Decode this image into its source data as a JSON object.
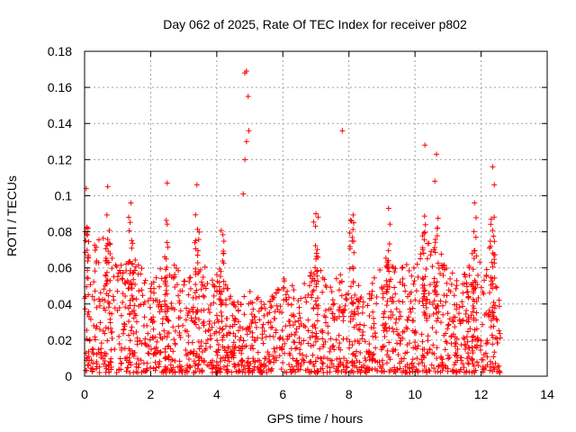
{
  "chart_data": {
    "type": "scatter",
    "title": "Day 062 of 2025, Rate Of TEC Index for receiver p802",
    "xlabel": "GPS time / hours",
    "ylabel": "ROTI / TECUs",
    "xlim": [
      0,
      14
    ],
    "ylim": [
      0,
      0.18
    ],
    "xticks": [
      0,
      2,
      4,
      6,
      8,
      10,
      12,
      14
    ],
    "xtick_labels": [
      "0",
      "2",
      "4",
      "6",
      "8",
      "10",
      "12",
      "14"
    ],
    "yticks": [
      0,
      0.02,
      0.04,
      0.06,
      0.08,
      0.1,
      0.12,
      0.14,
      0.16,
      0.18
    ],
    "ytick_labels": [
      "0",
      "0.02",
      "0.04",
      "0.06",
      "0.08",
      "0.1",
      "0.12",
      "0.14",
      "0.16",
      "0.18"
    ],
    "grid": true,
    "marker": "+",
    "series": [
      {
        "name": "ROTI",
        "color": "#ff0000",
        "x_range": [
          0,
          12.6
        ],
        "typical_range": [
          0.003,
          0.06
        ],
        "notable_points": [
          {
            "x": 0.05,
            "y": 0.104
          },
          {
            "x": 0.7,
            "y": 0.105
          },
          {
            "x": 1.4,
            "y": 0.096
          },
          {
            "x": 2.5,
            "y": 0.107
          },
          {
            "x": 3.4,
            "y": 0.106
          },
          {
            "x": 4.8,
            "y": 0.101
          },
          {
            "x": 4.85,
            "y": 0.168
          },
          {
            "x": 4.9,
            "y": 0.169
          },
          {
            "x": 4.95,
            "y": 0.155
          },
          {
            "x": 4.97,
            "y": 0.136
          },
          {
            "x": 4.9,
            "y": 0.13
          },
          {
            "x": 4.85,
            "y": 0.12
          },
          {
            "x": 7.8,
            "y": 0.136
          },
          {
            "x": 10.3,
            "y": 0.128
          },
          {
            "x": 10.65,
            "y": 0.123
          },
          {
            "x": 10.6,
            "y": 0.108
          },
          {
            "x": 12.35,
            "y": 0.116
          },
          {
            "x": 12.4,
            "y": 0.106
          },
          {
            "x": 9.2,
            "y": 0.093
          },
          {
            "x": 7.0,
            "y": 0.09
          },
          {
            "x": 11.8,
            "y": 0.096
          }
        ]
      }
    ]
  }
}
